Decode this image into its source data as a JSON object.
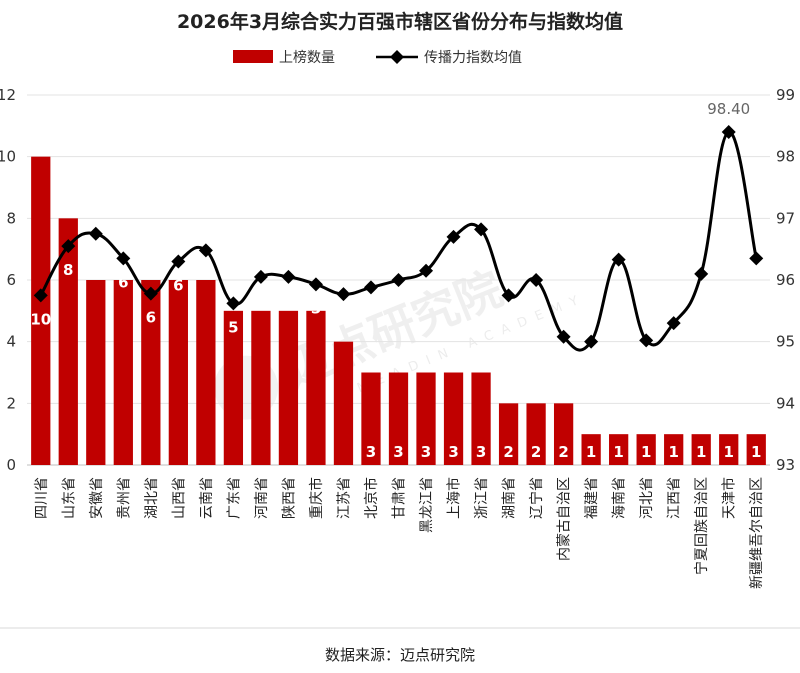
{
  "chart_data": {
    "type": "bar",
    "title": "2026年3月综合实力百强市辖区省份分布与指数均值",
    "categories": [
      "四川省",
      "山东省",
      "安徽省",
      "贵州省",
      "湖北省",
      "山西省",
      "云南省",
      "广东省",
      "河南省",
      "陕西省",
      "重庆市",
      "江苏省",
      "北京市",
      "甘肃省",
      "黑龙江省",
      "上海市",
      "浙江省",
      "湖南省",
      "辽宁省",
      "内蒙古自治区",
      "福建省",
      "海南省",
      "河北省",
      "江西省",
      "宁夏回族自治区",
      "天津市",
      "新疆维吾尔自治区"
    ],
    "series": [
      {
        "name": "上榜数量",
        "type": "bar",
        "axis": "left",
        "color": "#c00000",
        "values": [
          10,
          8,
          6,
          6,
          6,
          6,
          6,
          5,
          5,
          5,
          5,
          4,
          3,
          3,
          3,
          3,
          3,
          2,
          2,
          2,
          1,
          1,
          1,
          1,
          1,
          1,
          1
        ]
      },
      {
        "name": "传播力指数均值",
        "type": "line",
        "axis": "right",
        "color": "#000000",
        "values": [
          95.75,
          96.55,
          96.75,
          96.35,
          95.78,
          96.3,
          96.48,
          95.62,
          96.05,
          96.05,
          95.93,
          95.77,
          95.88,
          96.0,
          96.15,
          96.7,
          96.82,
          95.75,
          96.0,
          95.08,
          95.0,
          96.33,
          95.02,
          95.3,
          96.1,
          98.4,
          96.35
        ]
      }
    ],
    "y_left": {
      "min": 0,
      "max": 12,
      "ticks": [
        0,
        2,
        4,
        6,
        8,
        10,
        12
      ]
    },
    "y_right": {
      "min": 93,
      "max": 99,
      "ticks": [
        93,
        94,
        95,
        96,
        97,
        98,
        99
      ]
    },
    "annotation": "98.40",
    "legend_position": "top-center",
    "grid": true
  },
  "source": "数据来源：迈点研究院",
  "watermark": {
    "main": "迈点研究院",
    "sub": "MEADIN ACADEMY"
  }
}
